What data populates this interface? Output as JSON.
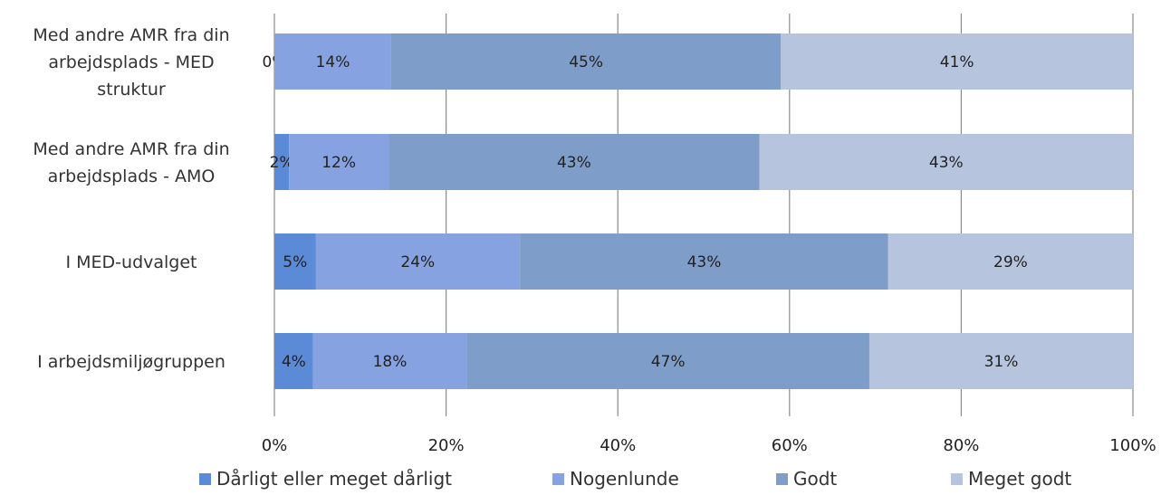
{
  "chart_data": {
    "type": "bar",
    "orientation": "horizontal",
    "stacked": "percent",
    "categories": [
      "Med andre AMR fra din arbejdsplads - MED struktur",
      "Med andre AMR fra din arbejdsplads - AMO",
      "I MED-udvalget",
      "I arbejdsmiljøgruppen"
    ],
    "category_lines": [
      [
        "Med andre AMR fra din",
        "arbejdsplads - MED",
        "struktur"
      ],
      [
        "Med andre AMR fra din",
        "arbejdsplads - AMO"
      ],
      [
        "I MED-udvalget"
      ],
      [
        "I arbejdsmiljøgruppen"
      ]
    ],
    "series": [
      {
        "name": "Dårligt eller meget dårligt",
        "color": "#5b8ad6",
        "values": [
          0,
          1.7,
          4.8,
          4.5
        ],
        "labels": [
          "0%",
          "2%",
          "5%",
          "4%"
        ]
      },
      {
        "name": "Nogenlunde",
        "color": "#86a2e0",
        "values": [
          13.6,
          11.6,
          23.8,
          17.9
        ],
        "labels": [
          "14%",
          "12%",
          "24%",
          "18%"
        ]
      },
      {
        "name": "Godt",
        "color": "#7f9dc9",
        "values": [
          45.4,
          43.2,
          42.9,
          46.9
        ],
        "labels": [
          "45%",
          "43%",
          "43%",
          "47%"
        ]
      },
      {
        "name": "Meget godt",
        "color": "#b7c4de",
        "values": [
          41.0,
          43.5,
          28.5,
          30.7
        ],
        "labels": [
          "41%",
          "43%",
          "29%",
          "31%"
        ]
      }
    ],
    "xlim": [
      0,
      100
    ],
    "xticks": [
      "0%",
      "20%",
      "40%",
      "60%",
      "80%",
      "100%"
    ],
    "grid": true,
    "legend_position": "bottom"
  }
}
